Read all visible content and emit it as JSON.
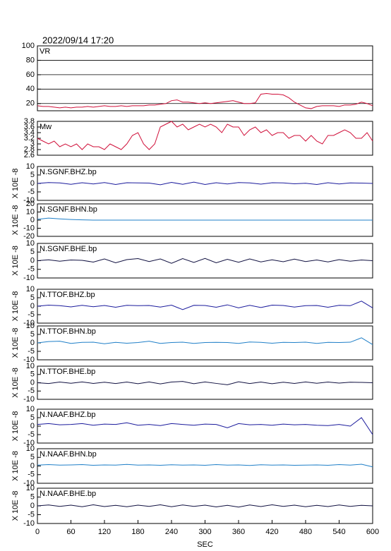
{
  "chart_data": [
    {
      "type": "line",
      "title": "2022/09/14 17:20",
      "label": "VR",
      "color": "#d0103a",
      "grid": true,
      "xlim": [
        0,
        600
      ],
      "ylim": [
        10,
        100
      ],
      "yticks": [
        20,
        40,
        60,
        80,
        100
      ],
      "x": [
        0,
        10,
        20,
        30,
        40,
        50,
        60,
        70,
        80,
        90,
        100,
        110,
        120,
        130,
        140,
        150,
        160,
        170,
        180,
        190,
        200,
        210,
        220,
        230,
        240,
        250,
        260,
        270,
        280,
        290,
        300,
        310,
        320,
        330,
        340,
        350,
        360,
        370,
        380,
        390,
        400,
        410,
        420,
        430,
        440,
        450,
        460,
        470,
        480,
        490,
        500,
        510,
        520,
        530,
        540,
        550,
        560,
        570,
        580,
        590,
        600
      ],
      "values": [
        17,
        16,
        16,
        15,
        14,
        15,
        14,
        15,
        15,
        16,
        15,
        16,
        17,
        16,
        16,
        17,
        16,
        17,
        17,
        17,
        18,
        18,
        19,
        20,
        24,
        25,
        22,
        22,
        21,
        20,
        21,
        20,
        21,
        22,
        23,
        24,
        22,
        20,
        20,
        21,
        33,
        34,
        33,
        33,
        32,
        28,
        22,
        18,
        14,
        13,
        16,
        17,
        17,
        17,
        16,
        18,
        18,
        19,
        22,
        20,
        17
      ]
    },
    {
      "type": "line",
      "label": "Mw",
      "color": "#d0103a",
      "xlim": [
        0,
        600
      ],
      "ylim": [
        2.6,
        3.8
      ],
      "yticks": [
        2.6,
        2.8,
        3.0,
        3.2,
        3.4,
        3.6,
        3.8
      ],
      "x": [
        0,
        10,
        20,
        30,
        40,
        50,
        60,
        70,
        80,
        90,
        100,
        110,
        120,
        130,
        140,
        150,
        160,
        170,
        180,
        190,
        200,
        210,
        220,
        230,
        240,
        250,
        260,
        270,
        280,
        290,
        300,
        310,
        320,
        330,
        340,
        350,
        360,
        370,
        380,
        390,
        400,
        410,
        420,
        430,
        440,
        450,
        460,
        470,
        480,
        490,
        500,
        510,
        520,
        530,
        540,
        550,
        560,
        570,
        580,
        590,
        600
      ],
      "values": [
        3.2,
        3.1,
        3.0,
        3.1,
        2.9,
        3.0,
        2.9,
        3.0,
        2.8,
        3.0,
        2.9,
        2.9,
        2.8,
        3.0,
        2.9,
        2.8,
        3.0,
        3.3,
        3.4,
        3.0,
        2.8,
        3.0,
        3.6,
        3.7,
        3.8,
        3.6,
        3.7,
        3.5,
        3.6,
        3.7,
        3.6,
        3.7,
        3.6,
        3.4,
        3.7,
        3.6,
        3.6,
        3.3,
        3.5,
        3.6,
        3.4,
        3.5,
        3.3,
        3.4,
        3.4,
        3.2,
        3.3,
        3.3,
        3.1,
        3.3,
        3.1,
        3.0,
        3.3,
        3.3,
        3.4,
        3.5,
        3.4,
        3.2,
        3.2,
        3.4,
        3.1
      ]
    },
    {
      "type": "line",
      "label": "N.SGNF.BHZ.bp",
      "ylabel": "X 10E -8",
      "color": "#1a1a9c",
      "xlim": [
        0,
        600
      ],
      "ylim": [
        -10,
        10
      ],
      "yticks": [
        -10,
        -5,
        0,
        5,
        10
      ],
      "x": [
        0,
        20,
        40,
        60,
        80,
        100,
        120,
        140,
        160,
        180,
        200,
        220,
        240,
        260,
        280,
        300,
        320,
        340,
        360,
        380,
        400,
        420,
        440,
        460,
        480,
        500,
        520,
        540,
        560,
        580,
        600
      ],
      "values": [
        0,
        0.5,
        0.3,
        -0.5,
        0.4,
        -0.3,
        0.5,
        -0.6,
        0.4,
        0.3,
        0.2,
        -0.8,
        0.6,
        -0.5,
        0.8,
        -0.6,
        0.4,
        -0.3,
        0.5,
        0.3,
        -0.4,
        0.4,
        0.3,
        -0.2,
        0.1,
        -0.6,
        0.4,
        -0.3,
        0.3,
        0.2,
        0
      ]
    },
    {
      "type": "line",
      "label": "N.SGNF.BHN.bp",
      "ylabel": "X 10E -8",
      "color": "#1f7fc8",
      "xlim": [
        0,
        600
      ],
      "ylim": [
        -20,
        20
      ],
      "yticks": [
        -20,
        -10,
        0,
        10,
        20
      ],
      "x": [
        0,
        20,
        40,
        60,
        80,
        100,
        120,
        140,
        160,
        180,
        200,
        220,
        240,
        260,
        280,
        300,
        320,
        340,
        360,
        380,
        400,
        420,
        440,
        460,
        480,
        500,
        520,
        540,
        560,
        580,
        600
      ],
      "values": [
        1,
        2.5,
        1.5,
        0.8,
        0.3,
        0,
        0,
        0,
        0,
        0,
        0,
        0,
        0,
        0,
        0,
        0,
        0,
        0,
        0,
        0,
        0,
        0,
        0,
        0,
        0,
        0,
        0,
        0,
        0,
        0,
        0
      ]
    },
    {
      "type": "line",
      "label": "N.SGNF.BHE.bp",
      "ylabel": "X 10E -8",
      "color": "#101040",
      "xlim": [
        0,
        600
      ],
      "ylim": [
        -10,
        10
      ],
      "yticks": [
        -10,
        -5,
        0,
        5,
        10
      ],
      "x": [
        0,
        20,
        40,
        60,
        80,
        100,
        120,
        140,
        160,
        180,
        200,
        220,
        240,
        260,
        280,
        300,
        320,
        340,
        360,
        380,
        400,
        420,
        440,
        460,
        480,
        500,
        520,
        540,
        560,
        580,
        600
      ],
      "values": [
        0,
        0.5,
        -0.3,
        0.4,
        0.2,
        -0.8,
        1,
        -1.2,
        0.6,
        1.2,
        -0.5,
        1,
        -1.5,
        1.2,
        -1,
        1.3,
        -1.2,
        0.8,
        -0.9,
        1,
        -0.7,
        0.5,
        -0.6,
        0.9,
        -0.5,
        0.4,
        -0.7,
        0.6,
        -0.3,
        0.4,
        0
      ]
    },
    {
      "type": "line",
      "label": "N.TTOF.BHZ.bp",
      "ylabel": "X 10E -8",
      "color": "#1a1a9c",
      "xlim": [
        0,
        600
      ],
      "ylim": [
        -10,
        10
      ],
      "yticks": [
        -10,
        -5,
        0,
        5,
        10
      ],
      "x": [
        0,
        20,
        40,
        60,
        80,
        100,
        120,
        140,
        160,
        180,
        200,
        220,
        240,
        260,
        280,
        300,
        320,
        340,
        360,
        380,
        400,
        420,
        440,
        460,
        480,
        500,
        520,
        540,
        560,
        580,
        600
      ],
      "values": [
        0,
        0.6,
        0.3,
        -0.4,
        0.5,
        -0.3,
        0.4,
        -0.6,
        0.5,
        0.3,
        0.4,
        -0.5,
        0.6,
        -2,
        0.5,
        0.4,
        -0.6,
        0.8,
        -1,
        0.5,
        -0.8,
        0.6,
        0.4,
        -0.5,
        0.3,
        0.4,
        -0.6,
        0.5,
        0.3,
        3,
        -1
      ]
    },
    {
      "type": "line",
      "label": "N.TTOF.BHN.bp",
      "ylabel": "X 10E -8",
      "color": "#1f7fc8",
      "xlim": [
        0,
        600
      ],
      "ylim": [
        -10,
        10
      ],
      "yticks": [
        -10,
        -5,
        0,
        5,
        10
      ],
      "x": [
        0,
        20,
        40,
        60,
        80,
        100,
        120,
        140,
        160,
        180,
        200,
        220,
        240,
        260,
        280,
        300,
        320,
        340,
        360,
        380,
        400,
        420,
        440,
        460,
        480,
        500,
        520,
        540,
        560,
        580,
        600
      ],
      "values": [
        0,
        0.8,
        1,
        -0.3,
        0.3,
        0.4,
        -0.5,
        0.3,
        -0.2,
        0.2,
        1,
        -0.3,
        0.2,
        0.4,
        -0.3,
        0.2,
        0.3,
        0.2,
        -0.3,
        0.5,
        0.3,
        -0.2,
        0.3,
        0.2,
        0.4,
        -0.3,
        0.3,
        0.2,
        0.4,
        3,
        -1
      ]
    },
    {
      "type": "line",
      "label": "N.TTOF.BHE.bp",
      "ylabel": "X 10E -8",
      "color": "#101040",
      "xlim": [
        0,
        600
      ],
      "ylim": [
        -10,
        10
      ],
      "yticks": [
        -10,
        -5,
        0,
        5,
        10
      ],
      "x": [
        0,
        20,
        40,
        60,
        80,
        100,
        120,
        140,
        160,
        180,
        200,
        220,
        240,
        260,
        280,
        300,
        320,
        340,
        360,
        380,
        400,
        420,
        440,
        460,
        480,
        500,
        520,
        540,
        560,
        580,
        600
      ],
      "values": [
        0,
        -0.5,
        0.4,
        -0.3,
        0.5,
        -0.4,
        0.3,
        -0.5,
        0.4,
        -0.6,
        0.5,
        -0.7,
        0.4,
        0.8,
        -0.6,
        0.5,
        -0.4,
        -1.2,
        0.6,
        -0.5,
        0.4,
        -0.6,
        0.3,
        -0.4,
        0.5,
        -0.3,
        0.4,
        -0.2,
        0.3,
        0.2,
        0
      ]
    },
    {
      "type": "line",
      "label": "N.NAAF.BHZ.bp",
      "ylabel": "X 10E -8",
      "color": "#1a1a9c",
      "xlim": [
        0,
        600
      ],
      "ylim": [
        -10,
        10
      ],
      "yticks": [
        -10,
        -5,
        0,
        5,
        10
      ],
      "x": [
        0,
        20,
        40,
        60,
        80,
        100,
        120,
        140,
        160,
        180,
        200,
        220,
        240,
        260,
        280,
        300,
        320,
        340,
        360,
        380,
        400,
        420,
        440,
        460,
        480,
        500,
        520,
        540,
        560,
        580,
        600
      ],
      "values": [
        1,
        1.5,
        0.8,
        1,
        1.5,
        0.5,
        1.2,
        1,
        2,
        0.5,
        1,
        0.3,
        1.5,
        1,
        0.5,
        1.2,
        1,
        -1,
        1.5,
        0.8,
        1,
        0.5,
        1.2,
        0.8,
        1,
        0.5,
        0.3,
        1,
        0,
        5,
        -5
      ]
    },
    {
      "type": "line",
      "label": "N.NAAF.BHN.bp",
      "ylabel": "X 10E -8",
      "color": "#1f7fc8",
      "xlim": [
        0,
        600
      ],
      "ylim": [
        -10,
        10
      ],
      "yticks": [
        -10,
        -5,
        0,
        5,
        10
      ],
      "x": [
        0,
        20,
        40,
        60,
        80,
        100,
        120,
        140,
        160,
        180,
        200,
        220,
        240,
        260,
        280,
        300,
        320,
        340,
        360,
        380,
        400,
        420,
        440,
        460,
        480,
        500,
        520,
        540,
        560,
        580,
        600
      ],
      "values": [
        0.5,
        0.8,
        0.5,
        0.6,
        0.8,
        0.4,
        0.6,
        0.5,
        0.9,
        0.5,
        0.6,
        0.4,
        0.7,
        0.5,
        0.6,
        0.4,
        0.8,
        0.5,
        0.6,
        0.3,
        0.7,
        0.5,
        0.6,
        0.4,
        0.5,
        0.6,
        0.4,
        0.8,
        0.5,
        1,
        -0.5
      ]
    },
    {
      "type": "line",
      "label": "N.NAAF.BHE.bp",
      "ylabel": "X 10E -8",
      "color": "#101040",
      "xlim": [
        0,
        600
      ],
      "ylim": [
        -10,
        10
      ],
      "yticks": [
        -10,
        -5,
        0,
        5,
        10
      ],
      "xticks": [
        0,
        60,
        120,
        180,
        240,
        300,
        360,
        420,
        480,
        540,
        600
      ],
      "xlabel": "SEC",
      "x": [
        0,
        20,
        40,
        60,
        80,
        100,
        120,
        140,
        160,
        180,
        200,
        220,
        240,
        260,
        280,
        300,
        320,
        340,
        360,
        380,
        400,
        420,
        440,
        460,
        480,
        500,
        520,
        540,
        560,
        580,
        600
      ],
      "values": [
        0,
        0.5,
        -0.3,
        0.4,
        -0.5,
        0.6,
        -0.4,
        0.3,
        -0.5,
        0.4,
        -0.3,
        0.6,
        -0.5,
        0.5,
        -0.3,
        0.4,
        -0.6,
        0.3,
        -0.7,
        0.5,
        -0.4,
        0.6,
        -0.3,
        0.4,
        -0.5,
        0.3,
        -0.4,
        0.5,
        -0.3,
        0.3,
        0
      ]
    }
  ]
}
